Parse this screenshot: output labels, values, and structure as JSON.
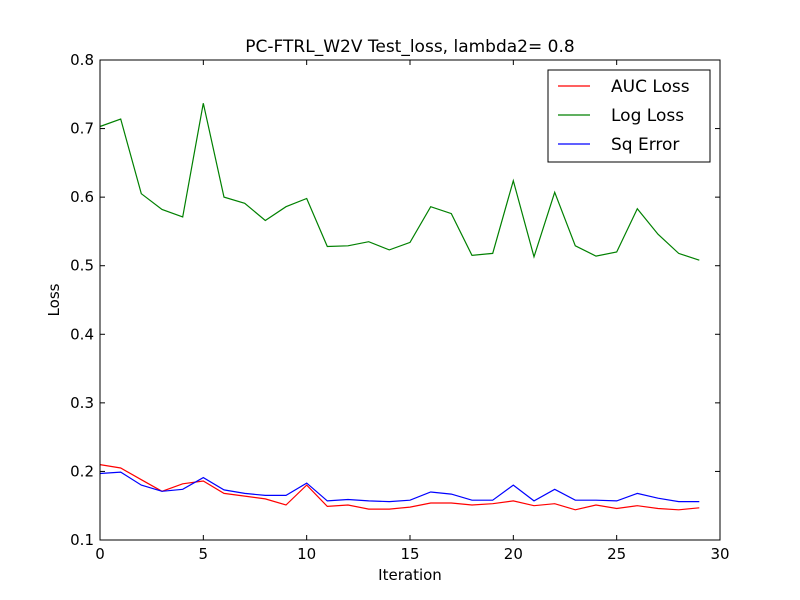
{
  "chart_data": {
    "type": "line",
    "title": "PC-FTRL_W2V Test_loss, lambda2= 0.8",
    "xlabel": "Iteration",
    "ylabel": "Loss",
    "xlim": [
      0,
      30
    ],
    "ylim": [
      0.1,
      0.8
    ],
    "xticks": [
      "0",
      "5",
      "10",
      "15",
      "20",
      "25",
      "30"
    ],
    "yticks": [
      "0.1",
      "0.2",
      "0.3",
      "0.4",
      "0.5",
      "0.6",
      "0.7",
      "0.8"
    ],
    "grid": false,
    "legend_position": "top-right",
    "x": [
      0,
      1,
      2,
      3,
      4,
      5,
      6,
      7,
      8,
      9,
      10,
      11,
      12,
      13,
      14,
      15,
      16,
      17,
      18,
      19,
      20,
      21,
      22,
      23,
      24,
      25,
      26,
      27,
      28,
      29
    ],
    "series": [
      {
        "name": "AUC Loss",
        "color": "#ff0000",
        "values": [
          0.21,
          0.205,
          0.188,
          0.171,
          0.182,
          0.186,
          0.168,
          0.164,
          0.16,
          0.151,
          0.18,
          0.149,
          0.151,
          0.145,
          0.145,
          0.148,
          0.154,
          0.154,
          0.151,
          0.153,
          0.157,
          0.15,
          0.153,
          0.144,
          0.151,
          0.146,
          0.15,
          0.146,
          0.144,
          0.147
        ]
      },
      {
        "name": "Log Loss",
        "color": "#008000",
        "values": [
          0.703,
          0.714,
          0.605,
          0.582,
          0.571,
          0.737,
          0.6,
          0.591,
          0.566,
          0.586,
          0.598,
          0.528,
          0.529,
          0.535,
          0.523,
          0.534,
          0.586,
          0.576,
          0.515,
          0.518,
          0.624,
          0.513,
          0.607,
          0.529,
          0.514,
          0.52,
          0.583,
          0.546,
          0.518,
          0.508
        ]
      },
      {
        "name": "Sq Error",
        "color": "#0000ff",
        "values": [
          0.197,
          0.199,
          0.18,
          0.171,
          0.174,
          0.191,
          0.173,
          0.168,
          0.165,
          0.165,
          0.183,
          0.157,
          0.159,
          0.157,
          0.156,
          0.158,
          0.17,
          0.167,
          0.158,
          0.158,
          0.18,
          0.157,
          0.174,
          0.158,
          0.158,
          0.157,
          0.168,
          0.161,
          0.156,
          0.156
        ]
      }
    ]
  }
}
